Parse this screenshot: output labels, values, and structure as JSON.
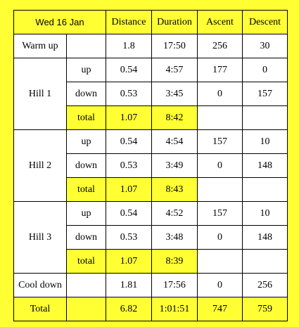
{
  "header": {
    "date": "Wed 16 Jan",
    "columns": [
      "Distance",
      "Duration",
      "Ascent",
      "Descent"
    ]
  },
  "warmup": {
    "label": "Warm up",
    "distance": "1.8",
    "duration": "17:50",
    "ascent": "256",
    "descent": "30"
  },
  "hills": [
    {
      "label": "Hill 1",
      "up": {
        "label": "up",
        "distance": "0.54",
        "duration": "4:57",
        "ascent": "177",
        "descent": "0"
      },
      "down": {
        "label": "down",
        "distance": "0.53",
        "duration": "3:45",
        "ascent": "0",
        "descent": "157"
      },
      "total": {
        "label": "total",
        "distance": "1.07",
        "duration": "8:42"
      }
    },
    {
      "label": "Hill 2",
      "up": {
        "label": "up",
        "distance": "0.54",
        "duration": "4:54",
        "ascent": "157",
        "descent": "10"
      },
      "down": {
        "label": "down",
        "distance": "0.53",
        "duration": "3:49",
        "ascent": "0",
        "descent": "148"
      },
      "total": {
        "label": "total",
        "distance": "1.07",
        "duration": "8:43"
      }
    },
    {
      "label": "Hill 3",
      "up": {
        "label": "up",
        "distance": "0.54",
        "duration": "4:52",
        "ascent": "157",
        "descent": "10"
      },
      "down": {
        "label": "down",
        "distance": "0.53",
        "duration": "3:48",
        "ascent": "0",
        "descent": "148"
      },
      "total": {
        "label": "total",
        "distance": "1.07",
        "duration": "8:39"
      }
    }
  ],
  "cooldown": {
    "label": "Cool down",
    "distance": "1.81",
    "duration": "17:56",
    "ascent": "0",
    "descent": "256"
  },
  "total": {
    "label": "Total",
    "distance": "6.82",
    "duration": "1:01:51",
    "ascent": "747",
    "descent": "759"
  },
  "colors": {
    "background": "#ffff33",
    "cell": "#ffffff",
    "border": "#000000"
  }
}
